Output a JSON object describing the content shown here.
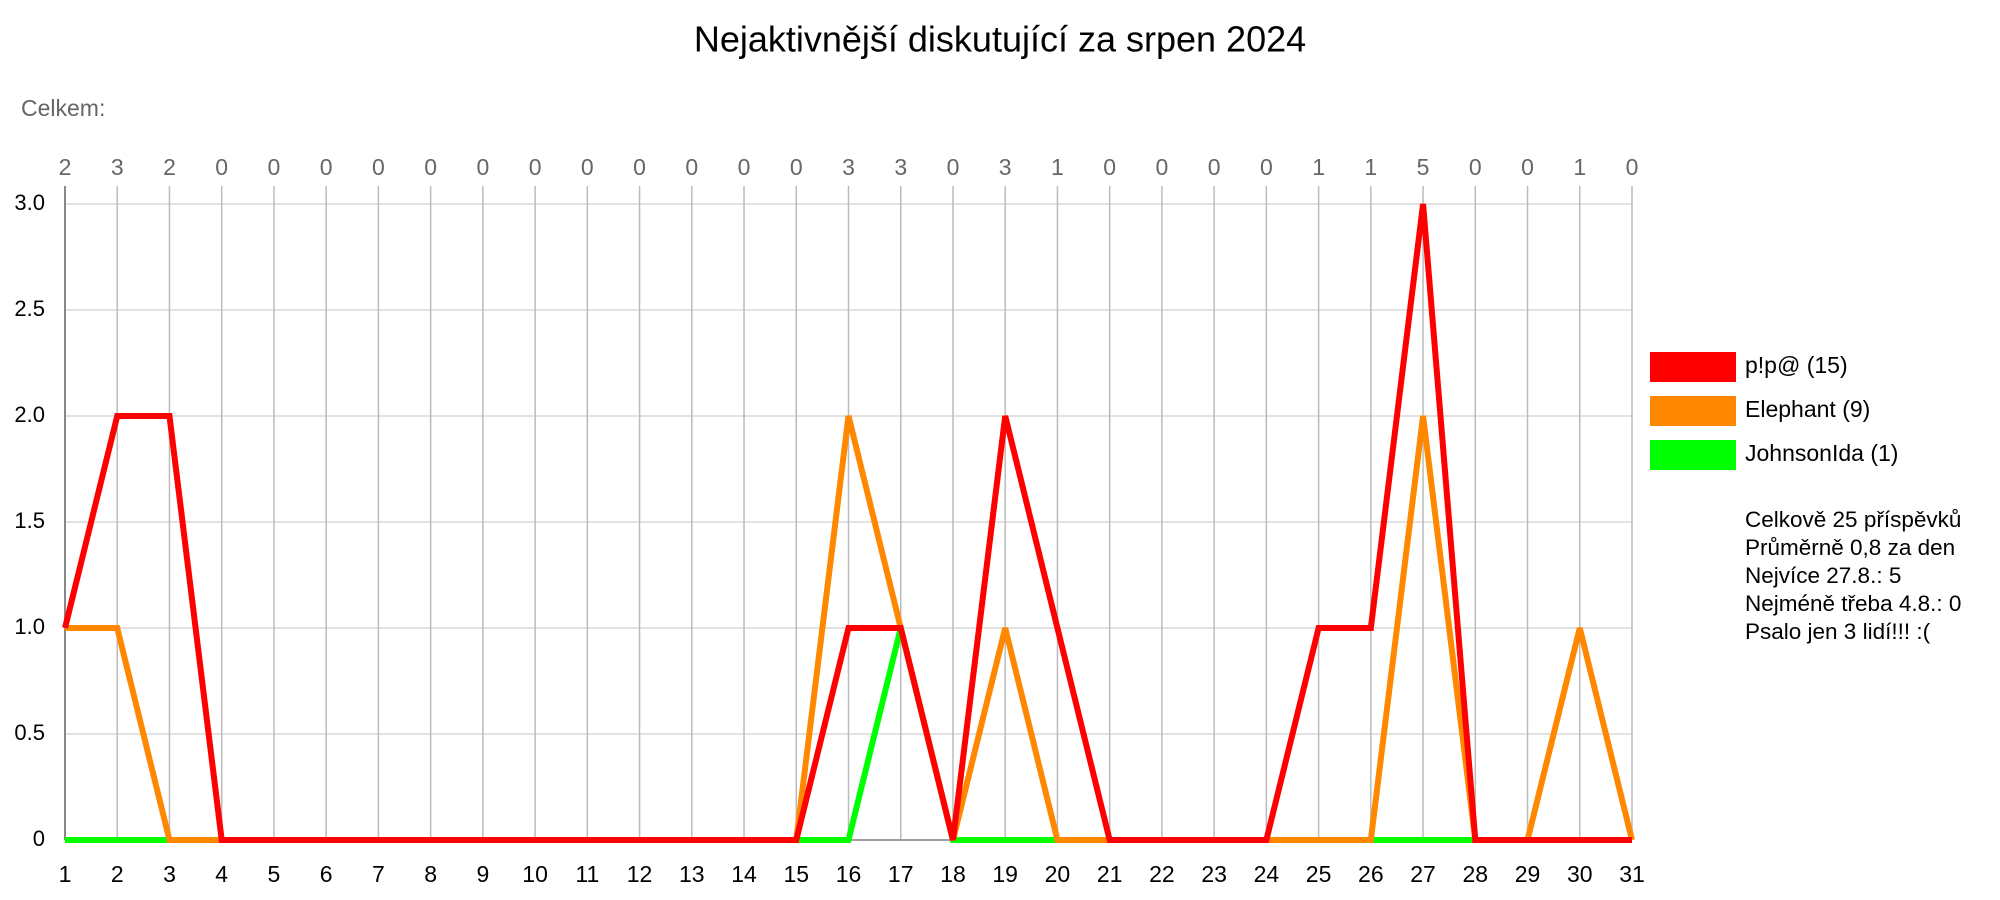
{
  "chart_data": {
    "type": "line",
    "title": "Nejaktivnější diskutující za srpen 2024",
    "totals_label": "Celkem:",
    "totals": [
      2,
      3,
      2,
      0,
      0,
      0,
      0,
      0,
      0,
      0,
      0,
      0,
      0,
      0,
      0,
      3,
      3,
      0,
      3,
      1,
      0,
      0,
      0,
      0,
      1,
      1,
      5,
      0,
      0,
      1,
      0
    ],
    "x": [
      1,
      2,
      3,
      4,
      5,
      6,
      7,
      8,
      9,
      10,
      11,
      12,
      13,
      14,
      15,
      16,
      17,
      18,
      19,
      20,
      21,
      22,
      23,
      24,
      25,
      26,
      27,
      28,
      29,
      30,
      31
    ],
    "xlim": [
      1,
      31
    ],
    "series": [
      {
        "name": "p!p@ (15)",
        "color": "#ff0000",
        "values": [
          1,
          2,
          2,
          0,
          0,
          0,
          0,
          0,
          0,
          0,
          0,
          0,
          0,
          0,
          0,
          1,
          1,
          0,
          2,
          1,
          0,
          0,
          0,
          0,
          1,
          1,
          3,
          0,
          0,
          0,
          0
        ]
      },
      {
        "name": "Elephant (9)",
        "color": "#ff8800",
        "values": [
          1,
          1,
          0,
          0,
          0,
          0,
          0,
          0,
          0,
          0,
          0,
          0,
          0,
          0,
          0,
          2,
          1,
          0,
          1,
          0,
          0,
          0,
          0,
          0,
          0,
          0,
          2,
          0,
          0,
          1,
          0
        ]
      },
      {
        "name": "JohnsonIda (1)",
        "color": "#00ff00",
        "values": [
          0,
          0,
          0,
          0,
          0,
          0,
          0,
          0,
          0,
          0,
          0,
          0,
          0,
          0,
          0,
          0,
          1,
          0,
          0,
          0,
          0,
          0,
          0,
          0,
          0,
          0,
          0,
          0,
          0,
          0,
          0
        ]
      }
    ],
    "ylim": [
      0,
      3
    ],
    "yticks": [
      0,
      0.5,
      {
        "value": 1,
        "label": "1.0"
      },
      1.5,
      {
        "value": 2,
        "label": "2.0"
      },
      2.5,
      {
        "value": 3,
        "label": "3.0"
      }
    ],
    "grid": true,
    "legend": "right",
    "annotations": [
      "Celkově 25 příspěvků",
      "Průměrně 0,8 za den",
      "Nejvíce 27.8.: 5",
      "Nejméně třeba 4.8.: 0",
      "Psalo jen 3 lidí!!! :("
    ]
  }
}
